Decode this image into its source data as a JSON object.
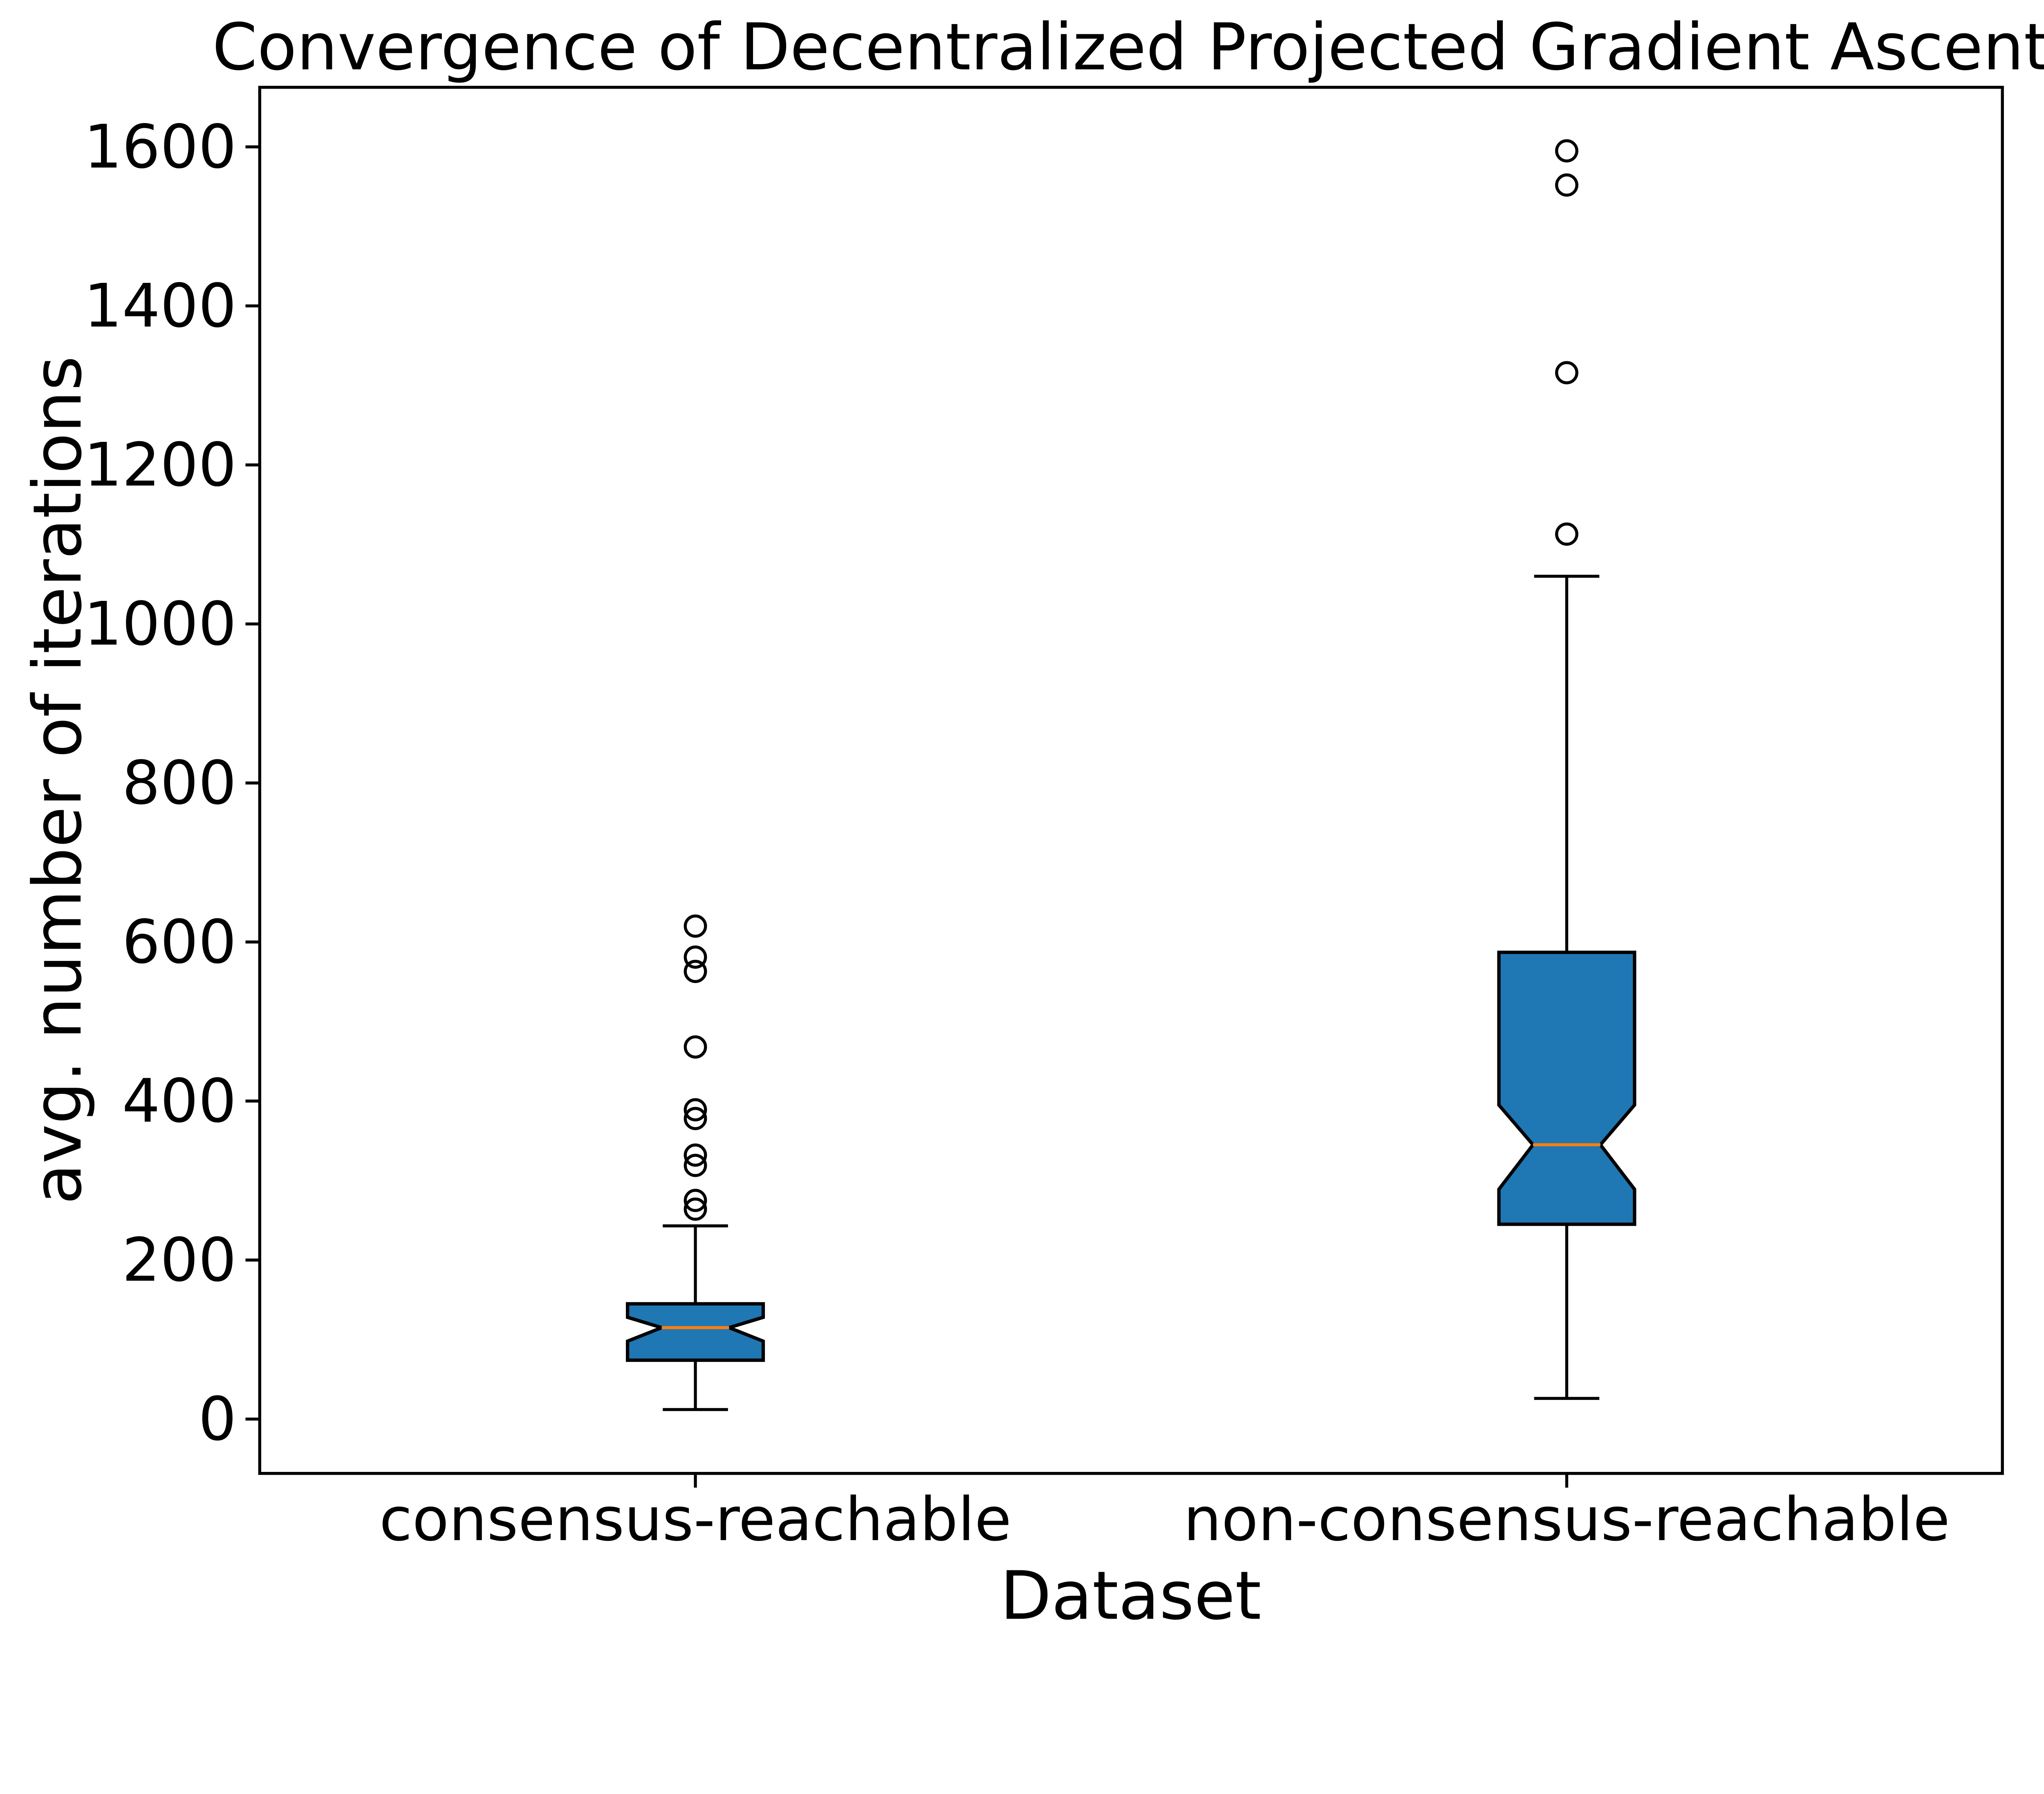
{
  "chart_data": {
    "type": "boxplot",
    "title": "Convergence of Decentralized Projected Gradient Ascent",
    "xlabel": "Dataset",
    "ylabel": "avg. number of iterations",
    "categories": [
      "consensus-reachable",
      "non-consensus-reachable"
    ],
    "y_ticks": [
      0,
      200,
      400,
      600,
      800,
      1000,
      1200,
      1400,
      1600
    ],
    "ylim": [
      -68,
      1675
    ],
    "grid": false,
    "legend": "none",
    "notched": true,
    "colors": {
      "box_fill": "#1f77b4",
      "median_line": "#ff7f0e",
      "line": "#000000",
      "background": "#ffffff"
    },
    "series": [
      {
        "label": "consensus-reachable",
        "whisker_low": 12,
        "q1": 74,
        "median": 115,
        "q3": 145,
        "whisker_high": 243,
        "notch_low": 98,
        "notch_high": 128,
        "outliers": [
          264,
          275,
          319,
          332,
          378,
          389,
          468,
          563,
          581,
          620
        ]
      },
      {
        "label": "non-consensus-reachable",
        "whisker_low": 26,
        "q1": 245,
        "median": 345,
        "q3": 587,
        "notch_low": 289,
        "notch_high": 395,
        "whisker_high": 1060,
        "outliers": [
          1113,
          1316,
          1552,
          1595
        ]
      }
    ]
  }
}
